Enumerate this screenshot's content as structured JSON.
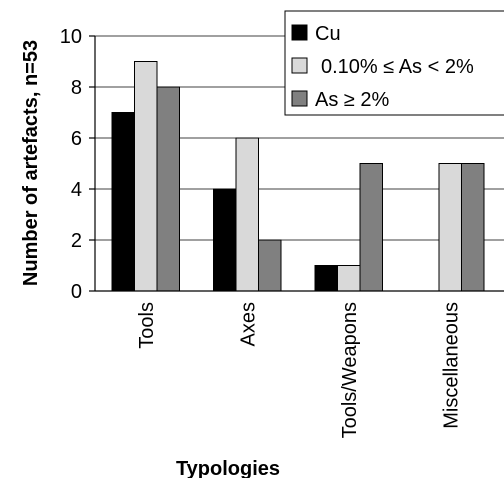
{
  "chart_data": {
    "type": "bar",
    "xlabel": "Typologies",
    "ylabel": "Number of artefacts, n=53",
    "ylim": [
      0,
      10
    ],
    "yticks": [
      0,
      2,
      4,
      6,
      8,
      10
    ],
    "grid": true,
    "legend_position": "top-right",
    "categories": [
      "Tools",
      "Axes",
      "Tools/Weapons",
      "Miscellaneous"
    ],
    "series": [
      {
        "name": "Cu",
        "color": "#000000",
        "values": [
          7,
          4,
          1,
          0
        ]
      },
      {
        "name": "0.10% ≤ As < 2%",
        "color": "#d9d9d9",
        "values": [
          9,
          6,
          1,
          5
        ]
      },
      {
        "name": "As ≥ 2%",
        "color": "#808080",
        "values": [
          8,
          2,
          5,
          5
        ]
      }
    ]
  }
}
